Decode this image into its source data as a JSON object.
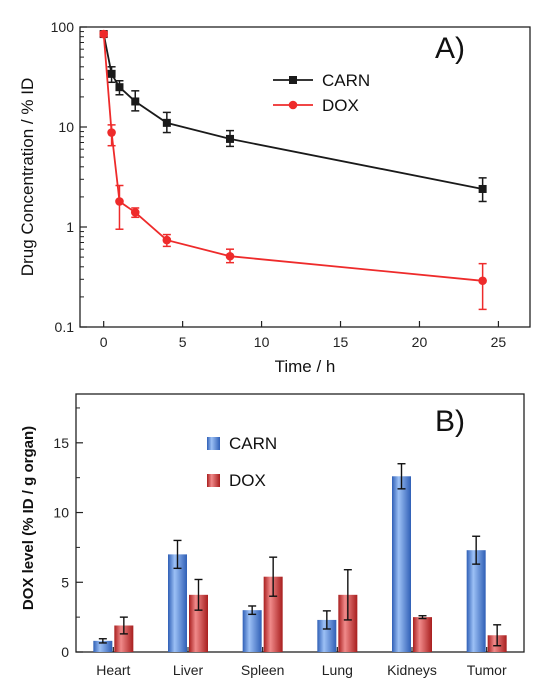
{
  "chart_data": [
    {
      "type": "line",
      "panel_label": "A)",
      "xlabel": "Time / h",
      "ylabel": "Drug Concentration / % ID",
      "xlim": [
        -1.5,
        27
      ],
      "ylim": [
        0.1,
        100
      ],
      "yscale": "log",
      "x_ticks": [
        0,
        5,
        10,
        15,
        20,
        25
      ],
      "y_ticks": [
        0.1,
        1,
        10,
        100
      ],
      "y_tick_labels": [
        "0.1",
        "1",
        "10",
        "100"
      ],
      "legend_position": "top-right",
      "series": [
        {
          "name": "CARN",
          "color": "#1a1a1a",
          "marker": "square",
          "x": [
            0,
            0.5,
            1,
            2,
            4,
            8,
            24
          ],
          "y": [
            85,
            34,
            25,
            18,
            11,
            7.6,
            2.4
          ],
          "err_low": [
            80,
            28,
            21,
            14.5,
            8.8,
            6.4,
            1.8
          ],
          "err_high": [
            90,
            40,
            29,
            23,
            14,
            9.2,
            3.1
          ]
        },
        {
          "name": "DOX",
          "color": "#ee2b2b",
          "marker": "circle",
          "x": [
            0,
            0.5,
            1,
            2,
            4,
            8,
            24
          ],
          "y": [
            85,
            8.8,
            1.8,
            1.4,
            0.74,
            0.51,
            0.29
          ],
          "err_low": [
            80,
            6.5,
            0.95,
            1.25,
            0.64,
            0.44,
            0.15
          ],
          "err_high": [
            90,
            10.5,
            2.6,
            1.55,
            0.84,
            0.6,
            0.43
          ]
        }
      ]
    },
    {
      "type": "bar",
      "panel_label": "B)",
      "xlabel": "",
      "ylabel": "DOX level (% ID / g organ)",
      "ylim": [
        0,
        18.5
      ],
      "y_ticks": [
        0,
        5,
        10,
        15
      ],
      "legend_position": "top-left",
      "categories": [
        "Heart",
        "Liver",
        "Spleen",
        "Lung",
        "Kidneys",
        "Tumor"
      ],
      "series": [
        {
          "name": "CARN",
          "color": "#4a7fd6",
          "values": [
            0.8,
            7.0,
            3.0,
            2.3,
            12.6,
            7.3
          ],
          "errors": [
            0.15,
            1.0,
            0.3,
            0.65,
            0.9,
            1.0
          ]
        },
        {
          "name": "DOX",
          "color": "#d63030",
          "values": [
            1.9,
            4.1,
            5.4,
            4.1,
            2.5,
            1.2
          ],
          "errors": [
            0.6,
            1.1,
            1.4,
            1.8,
            0.1,
            0.75
          ]
        }
      ]
    }
  ]
}
